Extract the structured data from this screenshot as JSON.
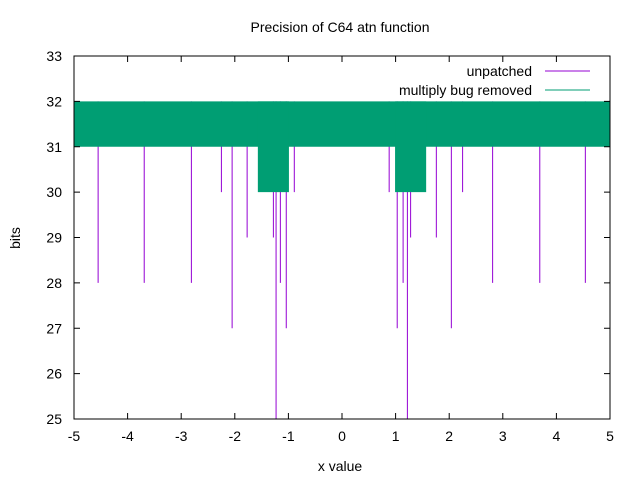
{
  "chart_data": {
    "type": "bar",
    "title": "Precision of C64 atn function",
    "xlabel": "x value",
    "ylabel": "bits",
    "xlim": [
      -5,
      5
    ],
    "ylim": [
      25,
      33
    ],
    "xticks": [
      "-5",
      "-4",
      "-3",
      "-2",
      "-1",
      "0",
      "1",
      "2",
      "3",
      "4",
      "5"
    ],
    "yticks": [
      "25",
      "26",
      "27",
      "28",
      "29",
      "30",
      "31",
      "32",
      "33"
    ],
    "grid": false,
    "legend_position": "top-right",
    "series": [
      {
        "name": "unpatched",
        "style": "impulses",
        "color": "#9400d3",
        "baseline": 32,
        "points": [
          {
            "x": -4.55,
            "y": 28
          },
          {
            "x": -3.69,
            "y": 28
          },
          {
            "x": -2.81,
            "y": 28
          },
          {
            "x": -2.25,
            "y": 30
          },
          {
            "x": -2.05,
            "y": 27
          },
          {
            "x": -1.77,
            "y": 29
          },
          {
            "x": -1.28,
            "y": 29
          },
          {
            "x": -1.23,
            "y": 25
          },
          {
            "x": -1.15,
            "y": 28
          },
          {
            "x": -1.04,
            "y": 27
          },
          {
            "x": -0.89,
            "y": 30
          },
          {
            "x": 0.88,
            "y": 30
          },
          {
            "x": 1.03,
            "y": 27
          },
          {
            "x": 1.14,
            "y": 28
          },
          {
            "x": 1.22,
            "y": 25
          },
          {
            "x": 1.28,
            "y": 29
          },
          {
            "x": 1.76,
            "y": 29
          },
          {
            "x": 2.04,
            "y": 27
          },
          {
            "x": 2.25,
            "y": 30
          },
          {
            "x": 2.81,
            "y": 28
          },
          {
            "x": 3.69,
            "y": 28
          },
          {
            "x": 4.54,
            "y": 28
          }
        ]
      },
      {
        "name": "multiply bug removed",
        "style": "filled",
        "color": "#009e73",
        "top": 32,
        "segments": [
          {
            "x0": -5,
            "x1": 5,
            "y": 31
          },
          {
            "x0": -1.57,
            "x1": -0.99,
            "y": 30
          },
          {
            "x0": 0.99,
            "x1": 1.57,
            "y": 30
          }
        ]
      }
    ]
  }
}
